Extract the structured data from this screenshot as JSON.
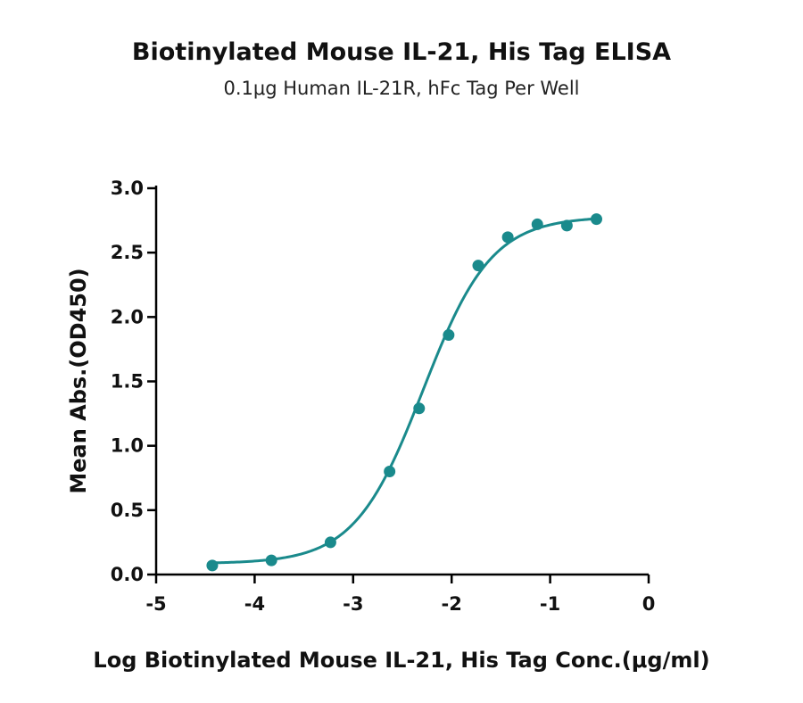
{
  "chart_data": {
    "type": "scatter",
    "title": "Biotinylated Mouse IL-21, His Tag ELISA",
    "subtitle": "0.1μg Human IL-21R, hFc Tag Per Well",
    "xlabel": "Log Biotinylated Mouse IL-21, His Tag Conc.(μg/ml)",
    "ylabel": "Mean Abs.(OD450)",
    "xlim": [
      -5,
      0
    ],
    "ylim": [
      0,
      3.0
    ],
    "xticks": [
      "-5",
      "-4",
      "-3",
      "-2",
      "-1",
      "0"
    ],
    "yticks": [
      "0.0",
      "0.5",
      "1.0",
      "1.5",
      "2.0",
      "2.5",
      "3.0"
    ],
    "grid": false,
    "color": "#1a8a8c",
    "series": [
      {
        "x": [
          -4.43,
          -3.83,
          -3.23,
          -2.63,
          -2.33,
          -2.03,
          -1.73,
          -1.43,
          -1.13,
          -0.83,
          -0.53
        ],
        "y": [
          0.07,
          0.11,
          0.25,
          0.8,
          1.29,
          1.86,
          2.4,
          2.62,
          2.72,
          2.71,
          2.76
        ]
      }
    ],
    "fit": {
      "model": "4PL",
      "bottom": 0.085,
      "top": 2.78,
      "logEC50": -2.29,
      "hill": 1.25
    }
  }
}
